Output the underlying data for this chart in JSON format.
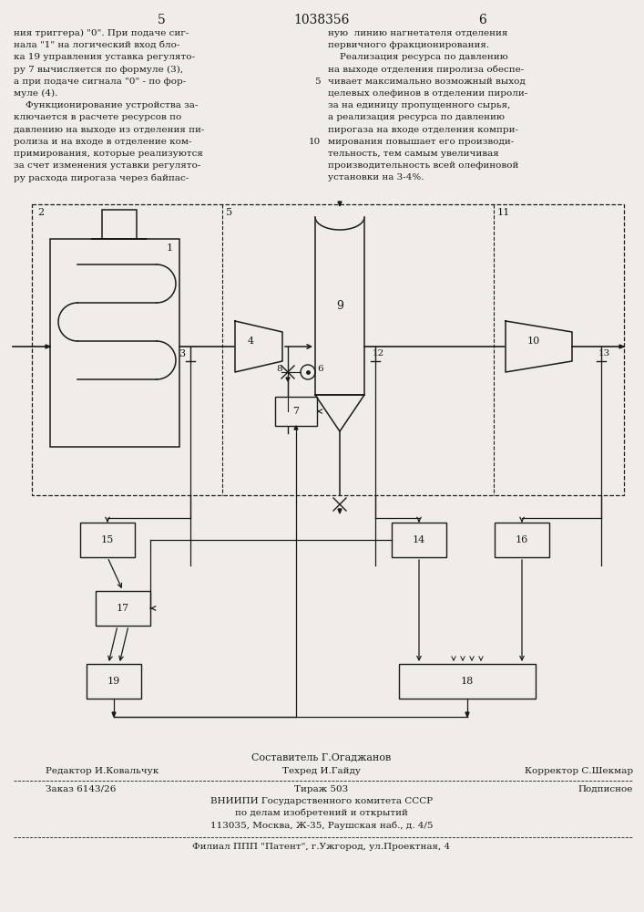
{
  "page_number_left": "5",
  "patent_number": "1038356",
  "page_number_right": "6",
  "left_text": [
    "ния триггера) \"0\". При подаче сиг-",
    "нала \"1\" на логический вход бло-",
    "ка 19 управления уставка регулято-",
    "ру 7 вычисляется по формуле (3),",
    "а при подаче сигнала \"0\" - по фор-",
    "муле (4).",
    "    Функционирование устройства за-",
    "ключается в расчете ресурсов по",
    "давлению на выходе из отделения пи-",
    "ролиза и на входе в отделение ком-",
    "примирования, которые реализуются",
    "за счет изменения уставки регулято-",
    "ру расхода пирогаза через байпас-"
  ],
  "right_text": [
    "ную  линию нагнетателя отделения",
    "первичного фракционирования.",
    "    Реализация ресурса по давлению",
    "на выходе отделения пиролиза обеспе-",
    "чивает максимально возможный выход",
    "целевых олефинов в отделении пироли-",
    "за на единицу пропущенного сырья,",
    "а реализация ресурса по давлению",
    "пирогаза на входе отделения компри-",
    "мирования повышает его производи-",
    "тельность, тем самым увеличивая",
    "производительность всей олефиновой",
    "установки на 3-4%."
  ],
  "footer_line1": "Составитель Г.Огаджанов",
  "footer_editor": "Редактор И.Ковальчук",
  "footer_techred": "Техред И.Гайду",
  "footer_corrector": "Корректор С.Шекмар",
  "footer_order": "Заказ 6143/26",
  "footer_tirazh": "Тираж 503",
  "footer_podpisnoe": "Подписное",
  "footer_org1": "ВНИИПИ Государственного комитета СССР",
  "footer_org2": "по делам изобретений и открытий",
  "footer_org3": "113035, Москва, Ж-35, Раушская наб., д. 4/5",
  "footer_filial": "Филиал ППП \"Патент\", г.Ужгород, ул.Проектная, 4",
  "bg_color": "#f0ede8",
  "line_color": "#1a1a1a",
  "text_color": "#1a1a1a"
}
